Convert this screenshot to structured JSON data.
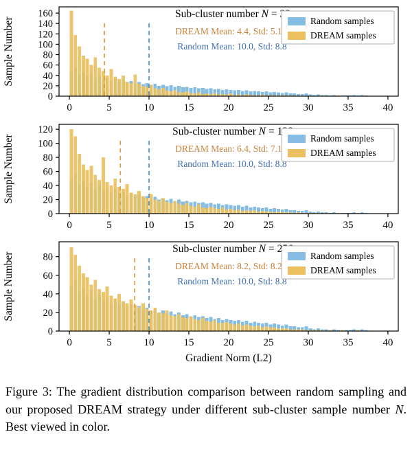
{
  "caption": {
    "part1": "Figure 3:  The gradient distribution comparison between random sampling and our proposed DREAM strategy under different sub-cluster sample number ",
    "italic_var": "N",
    "part2": ". Best viewed in color."
  },
  "chart_data": {
    "type": "bar",
    "subtype": "overlaid-histograms",
    "bin_width": 0.5,
    "bin_start": 0,
    "xlim": [
      -1.3,
      41.3
    ],
    "x_ticks": [
      0,
      5,
      10,
      15,
      20,
      25,
      30,
      35,
      40
    ],
    "xlabel": "Gradient Norm (L2)",
    "ylabel": "Sample Number",
    "grid": false,
    "legend_position": "upper right",
    "colors": {
      "random_bar": "#85bde4",
      "dream_bar": "#ecc05f",
      "random_line": "#4f94d0",
      "dream_line": "#dd9e3d",
      "random_text": "#3f6fae",
      "dream_text": "#c6803a",
      "axis": "#000000",
      "background": "#ffffff"
    },
    "legend": [
      {
        "label": "Random samples",
        "color": "#85bde4"
      },
      {
        "label": "DREAM samples",
        "color": "#ecc05f"
      }
    ],
    "random_series": {
      "name": "Random samples",
      "label": "Random Mean: 10.0, Std: 8.8",
      "mean": 10.0,
      "std": 8.8,
      "values": [
        48,
        55,
        42,
        46,
        38,
        44,
        35,
        40,
        32,
        36,
        30,
        34,
        28,
        31,
        26,
        29,
        24,
        27,
        23,
        25,
        22,
        24,
        20,
        22,
        19,
        21,
        18,
        20,
        17,
        18,
        16,
        17,
        15,
        16,
        14,
        15,
        13,
        14,
        12,
        13,
        12,
        11,
        12,
        10,
        11,
        9,
        10,
        9,
        8,
        9,
        7,
        8,
        7,
        6,
        7,
        5,
        5,
        4,
        4,
        5,
        3,
        2,
        3,
        2,
        2,
        1,
        2,
        1,
        1,
        1,
        1,
        2,
        1,
        2,
        1,
        0,
        0,
        0,
        0,
        0
      ]
    },
    "subplots": [
      {
        "title": {
          "prefix": "Sub-cluster number ",
          "variable": "N",
          "suffix": " = 32"
        },
        "ymax": 172,
        "yticks": [
          0,
          20,
          40,
          60,
          80,
          100,
          120,
          140,
          160
        ],
        "show_xlabel": false,
        "dream": {
          "name": "DREAM samples",
          "label": "DREAM Mean: 4.4, Std: 5.1",
          "mean": 4.4,
          "std": 5.1,
          "values": [
            165,
            118,
            96,
            78,
            72,
            60,
            75,
            55,
            48,
            40,
            52,
            38,
            33,
            40,
            28,
            25,
            42,
            24,
            20,
            18,
            22,
            15,
            13,
            16,
            11,
            9,
            12,
            8,
            7,
            9,
            6,
            5,
            7,
            4,
            5,
            4,
            6,
            3,
            4,
            3,
            5,
            2,
            3,
            2,
            4,
            2,
            2,
            1,
            3,
            1,
            2,
            1,
            1,
            2,
            1,
            1,
            1,
            0,
            1,
            0,
            1,
            0,
            0,
            1,
            0,
            0,
            0,
            1,
            0,
            0,
            0,
            0,
            0,
            0,
            0,
            0,
            0,
            0,
            0,
            0
          ]
        }
      },
      {
        "title": {
          "prefix": "Sub-cluster number ",
          "variable": "N",
          "suffix": " = 128"
        },
        "ymax": 127,
        "yticks": [
          0,
          20,
          40,
          60,
          80,
          100,
          120
        ],
        "show_xlabel": false,
        "dream": {
          "name": "DREAM samples",
          "label": "DREAM Mean: 6.4, Std: 7.1",
          "mean": 6.4,
          "std": 7.1,
          "values": [
            120,
            110,
            85,
            70,
            62,
            68,
            55,
            48,
            80,
            45,
            40,
            50,
            38,
            35,
            42,
            30,
            28,
            32,
            25,
            22,
            28,
            20,
            18,
            22,
            17,
            15,
            18,
            14,
            12,
            15,
            11,
            10,
            13,
            9,
            8,
            10,
            8,
            7,
            9,
            6,
            7,
            5,
            6,
            4,
            5,
            4,
            5,
            3,
            4,
            3,
            3,
            2,
            3,
            2,
            2,
            2,
            1,
            2,
            1,
            1,
            1,
            1,
            1,
            0,
            1,
            0,
            0,
            1,
            0,
            0,
            0,
            0,
            1,
            0,
            0,
            0,
            0,
            0,
            0,
            0
          ]
        }
      },
      {
        "title": {
          "prefix": "Sub-cluster number ",
          "variable": "N",
          "suffix": " = 256"
        },
        "ymax": 96,
        "yticks": [
          0,
          20,
          40,
          60,
          80
        ],
        "show_xlabel": true,
        "dream": {
          "name": "DREAM samples",
          "label": "DREAM Mean: 8.2, Std: 8.2",
          "mean": 8.2,
          "std": 8.2,
          "values": [
            90,
            82,
            70,
            62,
            58,
            50,
            55,
            45,
            42,
            48,
            38,
            35,
            40,
            32,
            30,
            34,
            28,
            26,
            30,
            24,
            22,
            25,
            20,
            19,
            22,
            17,
            16,
            18,
            15,
            14,
            16,
            13,
            12,
            14,
            11,
            10,
            12,
            9,
            9,
            10,
            8,
            7,
            8,
            6,
            7,
            6,
            5,
            6,
            4,
            5,
            4,
            4,
            3,
            3,
            3,
            2,
            2,
            2,
            2,
            1,
            1,
            1,
            1,
            1,
            0,
            1,
            0,
            0,
            1,
            0,
            0,
            0,
            1,
            0,
            0,
            0,
            0,
            0,
            0,
            0
          ]
        }
      }
    ]
  }
}
